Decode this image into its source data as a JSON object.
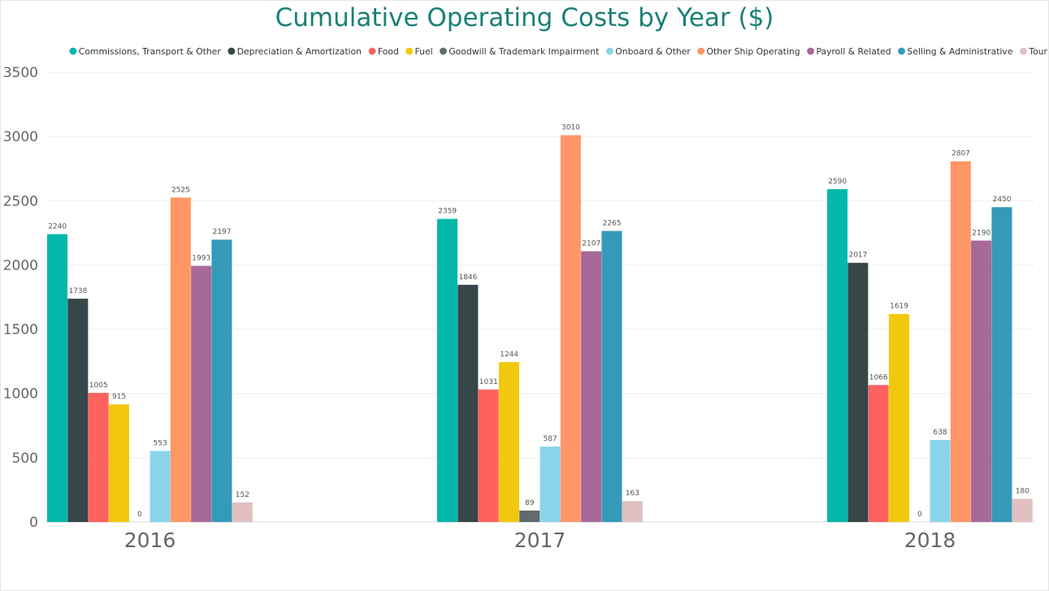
{
  "chart_data": {
    "type": "bar",
    "title": "Cumulative Operating Costs by Year ($)",
    "xlabel": "",
    "ylabel": "",
    "ylim": [
      0,
      3500
    ],
    "yticks": [
      0,
      500,
      1000,
      1500,
      2000,
      2500,
      3000,
      3500
    ],
    "grid": true,
    "legend_position": "top",
    "categories": [
      "2016",
      "2017",
      "2018"
    ],
    "series": [
      {
        "name": "Commissions, Transport & Other",
        "color": "#01b8aa",
        "values": [
          2240,
          2359,
          2590
        ]
      },
      {
        "name": "Depreciation & Amortization",
        "color": "#374649",
        "values": [
          1738,
          1846,
          2017
        ]
      },
      {
        "name": "Food",
        "color": "#fd625e",
        "values": [
          1005,
          1031,
          1066
        ]
      },
      {
        "name": "Fuel",
        "color": "#f2c80f",
        "values": [
          915,
          1244,
          1619
        ]
      },
      {
        "name": "Goodwill & Trademark Impairment",
        "color": "#5f6b6d",
        "values": [
          0,
          89,
          0
        ]
      },
      {
        "name": "Onboard & Other",
        "color": "#8ad4eb",
        "values": [
          553,
          587,
          638
        ]
      },
      {
        "name": "Other Ship Operating",
        "color": "#fe9666",
        "values": [
          2525,
          3010,
          2807
        ]
      },
      {
        "name": "Payroll & Related",
        "color": "#a66999",
        "values": [
          1993,
          2107,
          2190
        ]
      },
      {
        "name": "Selling & Administrative",
        "color": "#3599b8",
        "values": [
          2197,
          2265,
          2450
        ]
      },
      {
        "name": "Tour & Other",
        "color": "#dfbfbf",
        "values": [
          152,
          163,
          180
        ]
      }
    ]
  }
}
